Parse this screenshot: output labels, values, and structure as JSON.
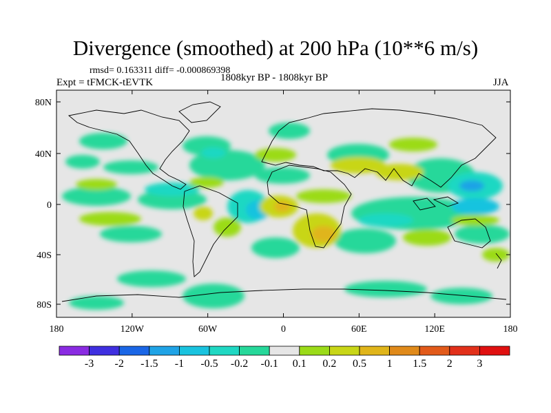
{
  "title": "Divergence (smoothed) at 200 hPa (10**6 m/s)",
  "stats": {
    "rmsd": "rmsd= 0.163311",
    "diff": "diff= -0.000869398"
  },
  "expt": "Expt = tFMCK-tEVTK",
  "period": "1808kyr BP - 1808kyr BP",
  "season": "JJA",
  "lon_labels": [
    "180",
    "120W",
    "60W",
    "0",
    "60E",
    "120E",
    "180"
  ],
  "lat_labels": [
    "80N",
    "40N",
    "0",
    "40S",
    "80S"
  ],
  "colorbar": {
    "labels": [
      "-3",
      "-2",
      "-1.5",
      "-1",
      "-0.5",
      "-0.2",
      "-0.1",
      "0.1",
      "0.2",
      "0.5",
      "1",
      "1.5",
      "2",
      "3"
    ],
    "colors": [
      "#8a2be2",
      "#3f2fe0",
      "#1a66e6",
      "#1fa3e6",
      "#19c3df",
      "#1fd8c3",
      "#26d89a",
      "#e6e6e6",
      "#9bdb18",
      "#c8d617",
      "#e0b51a",
      "#e08a1a",
      "#e25a1a",
      "#e2301a",
      "#e01010"
    ]
  },
  "colors": {
    "background_field": "#e6e6e6",
    "coast": "#000000"
  }
}
